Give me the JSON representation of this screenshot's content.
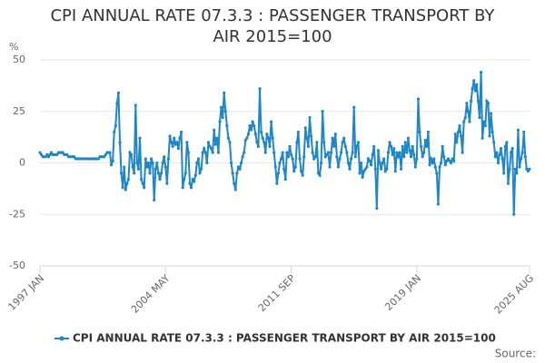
{
  "chart_data": {
    "type": "line",
    "title": "CPI ANNUAL RATE 07.3.3 : PASSENGER TRANSPORT BY AIR 2015=100",
    "y_label": "%",
    "source": "Source:",
    "ylim": [
      -50,
      50
    ],
    "yticks": [
      -50,
      -25,
      0,
      25,
      50
    ],
    "grid": true,
    "categories": [
      "1997 JAN",
      null,
      null,
      null,
      null,
      null,
      null,
      null,
      null,
      null,
      null,
      null,
      null,
      null,
      null,
      null,
      null,
      null,
      null,
      null,
      null,
      null,
      null,
      null,
      null,
      null,
      null,
      null,
      null,
      null,
      null,
      null,
      null,
      null,
      null,
      null,
      null,
      null,
      null,
      null,
      null,
      null,
      null,
      null,
      null,
      null,
      null,
      null,
      null,
      null,
      null,
      null,
      null,
      null,
      null,
      null,
      null,
      null,
      null,
      null,
      null,
      null,
      null,
      null,
      null,
      null,
      null,
      null,
      null,
      null,
      null,
      null,
      null,
      null,
      null,
      null,
      null,
      null,
      null,
      null,
      null,
      null,
      null,
      null,
      null,
      null,
      null,
      null,
      "2004 MAY",
      null,
      null,
      null,
      null,
      null,
      null,
      null,
      null,
      null,
      null,
      null,
      null,
      null,
      null,
      null,
      null,
      null,
      null,
      null,
      null,
      null,
      null,
      null,
      null,
      null,
      null,
      null,
      null,
      null,
      null,
      null,
      null,
      null,
      null,
      null,
      null,
      null,
      null,
      null,
      null,
      null,
      null,
      null,
      null,
      null,
      null,
      null,
      null,
      null,
      null,
      null,
      null,
      null,
      null,
      null,
      null,
      null,
      null,
      null,
      null,
      null,
      null,
      null,
      null,
      null,
      null,
      null,
      null,
      null,
      null,
      null,
      null,
      null,
      null,
      null,
      null,
      null,
      null,
      null,
      null,
      null,
      null,
      null,
      null,
      null,
      null,
      null,
      "2011 SEP",
      null,
      null,
      null,
      null,
      null,
      null,
      null,
      null,
      null,
      null,
      null,
      null,
      null,
      null,
      null,
      null,
      null,
      null,
      null,
      null,
      null,
      null,
      null,
      null,
      null,
      null,
      null,
      null,
      null,
      null,
      null,
      null,
      null,
      null,
      null,
      null,
      null,
      null,
      null,
      null,
      null,
      null,
      null,
      null,
      null,
      null,
      null,
      null,
      null,
      null,
      null,
      null,
      null,
      null,
      null,
      null,
      null,
      null,
      null,
      null,
      null,
      null,
      null,
      null,
      null,
      null,
      null,
      null,
      null,
      null,
      null,
      null,
      null,
      null,
      null,
      null,
      null,
      null,
      null,
      null,
      null,
      null,
      null,
      null,
      null,
      null,
      null,
      "2019 JAN",
      null,
      null,
      null,
      null,
      null,
      null,
      null,
      null,
      null,
      null,
      null,
      null,
      null,
      null,
      null,
      null,
      null,
      null,
      null,
      null,
      null,
      null,
      null,
      null,
      null,
      null,
      null,
      null,
      null,
      null,
      null,
      null,
      null,
      null,
      null,
      null,
      null,
      null,
      null,
      null,
      null,
      null,
      null,
      null,
      null,
      null,
      null,
      null,
      null,
      null,
      null,
      null,
      null,
      null,
      null,
      null,
      null,
      null,
      null,
      null,
      null,
      null,
      null,
      null,
      null,
      null,
      null,
      null,
      null,
      null,
      null,
      null,
      null,
      null,
      null,
      null,
      null,
      null,
      "2025 AUG"
    ],
    "series": [
      {
        "name": "CPI ANNUAL RATE 07.3.3 : PASSENGER TRANSPORT BY AIR 2015=100",
        "color": "#1f86c8",
        "values": [
          5,
          4,
          3,
          3,
          3,
          4,
          3,
          4,
          5,
          4,
          4,
          4,
          4,
          5,
          5,
          5,
          5,
          4,
          4,
          4,
          3,
          3,
          3,
          3,
          3,
          2,
          2,
          2,
          2,
          2,
          2,
          2,
          2,
          2,
          2,
          2,
          2,
          2,
          2,
          2,
          2,
          2,
          3,
          3,
          3,
          3,
          4,
          5,
          5,
          5,
          -1,
          1,
          15,
          18,
          29,
          34,
          10,
          -5,
          -12,
          -2,
          -13,
          -10,
          -8,
          5,
          4,
          -2,
          -5,
          28,
          0,
          -3,
          12,
          -8,
          -10,
          -12,
          2,
          -2,
          0,
          -5,
          2,
          0,
          -18,
          -3,
          0,
          -5,
          -8,
          -5,
          0,
          3,
          -2,
          -10,
          2,
          13,
          10,
          8,
          12,
          9,
          10,
          7,
          12,
          15,
          -12,
          -8,
          -5,
          10,
          5,
          -10,
          -12,
          -8,
          -9,
          -6,
          0,
          2,
          -5,
          -3,
          5,
          7,
          5,
          0,
          10,
          8,
          7,
          5,
          16,
          9,
          12,
          5,
          20,
          27,
          22,
          34,
          25,
          18,
          12,
          10,
          0,
          -5,
          -10,
          -13,
          -5,
          -2,
          -3,
          0,
          3,
          5,
          11,
          12,
          14,
          18,
          16,
          20,
          18,
          14,
          10,
          8,
          36,
          15,
          12,
          10,
          5,
          14,
          12,
          8,
          20,
          12,
          5,
          -2,
          -10,
          -5,
          0,
          2,
          5,
          -3,
          -8,
          5,
          3,
          8,
          4,
          2,
          -4,
          -2,
          10,
          15,
          2,
          -4,
          -6,
          3,
          17,
          12,
          8,
          22,
          13,
          5,
          2,
          3,
          10,
          -5,
          -6,
          0,
          25,
          10,
          3,
          4,
          5,
          -2,
          5,
          12,
          8,
          14,
          3,
          -2,
          2,
          5,
          10,
          12,
          8,
          5,
          0,
          -3,
          2,
          5,
          27,
          3,
          8,
          10,
          -5,
          0,
          -7,
          -4,
          -3,
          -2,
          2,
          1,
          -1,
          4,
          8,
          -3,
          -22,
          6,
          0,
          -3,
          0,
          2,
          -4,
          -3,
          5,
          10,
          8,
          4,
          7,
          -4,
          5,
          3,
          5,
          -3,
          8,
          3,
          10,
          5,
          12,
          6,
          3,
          8,
          4,
          -2,
          2,
          31,
          15,
          8,
          3,
          5,
          11,
          8,
          15,
          -1,
          2,
          0,
          2,
          -2,
          -5,
          -20,
          -2,
          0,
          8,
          3,
          -1,
          1,
          2,
          1,
          0,
          2,
          1,
          14,
          10,
          15,
          18,
          13,
          5,
          20,
          22,
          29,
          25,
          20,
          30,
          36,
          40,
          35,
          38,
          30,
          22,
          44,
          12,
          20,
          18,
          30,
          29,
          13,
          24,
          15,
          10,
          3,
          5,
          0,
          4,
          7,
          2,
          -5,
          8,
          10,
          -10,
          -3,
          5,
          7,
          -25,
          -3,
          -5,
          16,
          -2,
          2,
          5,
          15,
          3,
          -3,
          -4,
          -3
        ]
      }
    ]
  }
}
